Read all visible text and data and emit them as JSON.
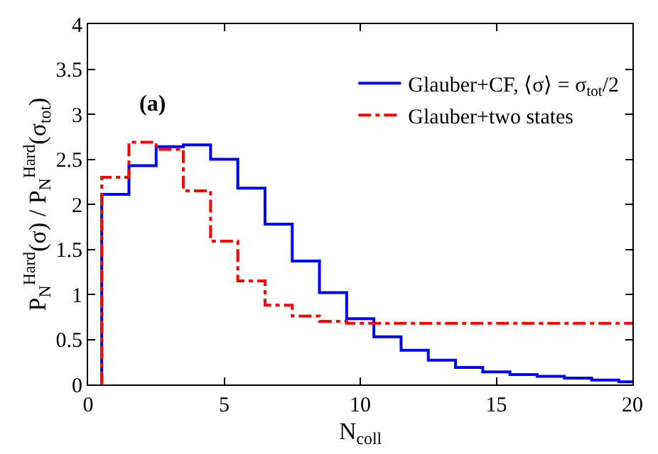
{
  "chart_data": {
    "type": "histogram",
    "xlabel": "N$_{coll}$",
    "ylabel": "P$_{N}$$^{Hard}$(σ) / P$_{N}$$^{Hard}$(σ$_{tot}$)",
    "bins": [
      0.5,
      1.5,
      2.5,
      3.5,
      4.5,
      5.5,
      6.5,
      7.5,
      8.5,
      9.5,
      10.5,
      11.5,
      12.5,
      13.5,
      14.5,
      15.5,
      16.5,
      17.5,
      18.5,
      19.5,
      20
    ],
    "series": [
      {
        "name": "Glauber+CF, ⟨σ⟩ = σ$_{tot}$/2",
        "color": "#0000ff",
        "line_style": "solid",
        "values": [
          2.11,
          2.43,
          2.64,
          2.66,
          2.5,
          2.18,
          1.78,
          1.37,
          1.02,
          0.73,
          0.53,
          0.38,
          0.27,
          0.19,
          0.14,
          0.11,
          0.09,
          0.07,
          0.05,
          0.03
        ]
      },
      {
        "name": "Glauber+two states",
        "color": "#ff0000",
        "line_style": "dashed",
        "values": [
          2.3,
          2.69,
          2.61,
          2.15,
          1.59,
          1.15,
          0.88,
          0.76,
          0.7,
          0.68,
          0.68,
          0.68,
          0.68,
          0.68,
          0.68,
          0.68,
          0.68,
          0.68,
          0.68,
          0.68
        ]
      }
    ],
    "annotations": [
      "(a)"
    ],
    "xlim": [
      0,
      20
    ],
    "xticks": [
      0,
      5,
      10,
      15,
      20
    ],
    "ylim": [
      0,
      4
    ],
    "yticks": [
      0,
      0.5,
      1,
      1.5,
      2,
      2.5,
      3,
      3.5,
      4
    ],
    "legend": "top right"
  }
}
